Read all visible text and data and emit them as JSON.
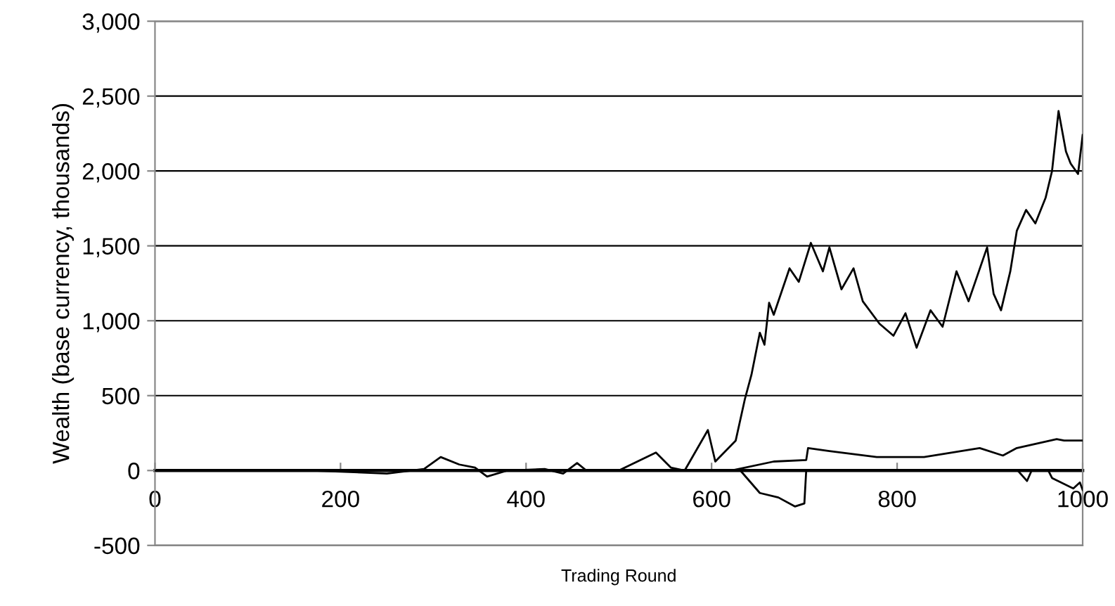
{
  "chart_data": {
    "type": "line",
    "xlabel": "Trading Round",
    "ylabel": "Wealth (base currency, thousands)",
    "xlim": [
      0,
      1000
    ],
    "xticks": [
      0,
      200,
      400,
      600,
      800,
      1000
    ],
    "ylim": [
      -500,
      3000
    ],
    "yticks": [
      {
        "value": -500,
        "label": "-500"
      },
      0,
      500,
      {
        "value": 1000,
        "label": "1,000"
      },
      {
        "value": 1500,
        "label": "1,500"
      },
      {
        "value": 2000,
        "label": "2,000"
      },
      {
        "value": 2500,
        "label": "2,500"
      },
      {
        "value": 3000,
        "label": "3,000"
      }
    ],
    "grid": "y",
    "marker": "none",
    "line_style": "solid",
    "series": [
      {
        "color": "#000000",
        "x": [
          0,
          170,
          250,
          290,
          308,
          328,
          345,
          358,
          380,
          420,
          440,
          455,
          465,
          500,
          540,
          556,
          571,
          596,
          604,
          626,
          636,
          643,
          652,
          657,
          662,
          667,
          684,
          694,
          707,
          720,
          727,
          740,
          753,
          763,
          781,
          796,
          809,
          821,
          836,
          849,
          864,
          877,
          897,
          904,
          912,
          922,
          929,
          939,
          949,
          960,
          967,
          974,
          982,
          987,
          995,
          1000
        ],
        "values": [
          0,
          0,
          -20,
          10,
          90,
          40,
          20,
          -40,
          0,
          10,
          -20,
          50,
          0,
          0,
          120,
          20,
          0,
          270,
          60,
          200,
          480,
          640,
          920,
          840,
          1120,
          1040,
          1350,
          1260,
          1520,
          1330,
          1490,
          1210,
          1350,
          1130,
          980,
          900,
          1050,
          820,
          1070,
          960,
          1330,
          1130,
          1490,
          1180,
          1070,
          1330,
          1600,
          1740,
          1650,
          1820,
          2000,
          2400,
          2130,
          2050,
          1980,
          2240
        ]
      },
      {
        "color": "#000000",
        "x": [
          0,
          621,
          667,
          702,
          704,
          727,
          778,
          829,
          889,
          914,
          929,
          972,
          980,
          1000
        ],
        "values": [
          0,
          0,
          60,
          70,
          150,
          130,
          90,
          90,
          150,
          100,
          150,
          210,
          200,
          200
        ]
      },
      {
        "color": "#000000",
        "x": [
          0,
          631,
          652,
          672,
          690,
          700,
          702,
          930,
          940,
          945,
          963,
          967,
          990,
          997,
          1000
        ],
        "values": [
          0,
          0,
          -150,
          -180,
          -240,
          -220,
          0,
          0,
          -70,
          0,
          0,
          -50,
          -120,
          -80,
          -130
        ]
      }
    ]
  }
}
